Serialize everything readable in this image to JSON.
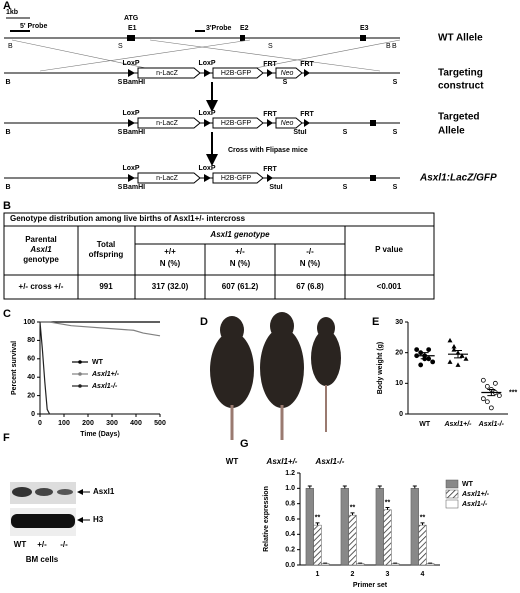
{
  "panel_labels": [
    "A",
    "B",
    "C",
    "D",
    "E",
    "F",
    "G"
  ],
  "panel_a": {
    "scale": "1kb",
    "probe5": "5' Probe",
    "atg": "ATG",
    "probe3": "3'Probe",
    "exons": [
      "E1",
      "E2",
      "E3"
    ],
    "rows": [
      [
        "WT Allele"
      ],
      [
        "Targeting",
        "construct"
      ],
      [
        "Targeted",
        "Allele"
      ],
      [
        "Asxl1:LacZ/GFP"
      ]
    ],
    "loxp": "LoxP",
    "lacz": "n-LacZ",
    "gfp": "H2B-GFP",
    "frt": "FRT",
    "neo": "Neo",
    "bamhi": "BamHI",
    "stui": "StuI",
    "b": "B",
    "s": "S",
    "cross": "Cross with Flipase mice"
  },
  "table": {
    "title": "Genotype distribution among live births of Asxl1+/- intercross",
    "parental": [
      "Parental",
      "Asxl1",
      "genotype"
    ],
    "total": [
      "Total",
      "offspring"
    ],
    "genotype": "Asxl1 genotype",
    "subcols": [
      [
        "+/+",
        "N (%)"
      ],
      [
        "+/-",
        "N (%)"
      ],
      [
        "-/-",
        "N (%)"
      ]
    ],
    "p": "P value",
    "row": [
      "+/- cross +/-",
      "991",
      "317 (32.0)",
      "607 (61.2)",
      "67 (6.8)",
      "<0.001"
    ]
  },
  "panel_d": {
    "labels": [
      "WT",
      "Asxl1+/-",
      "Asxl1-/-"
    ]
  },
  "panel_f": {
    "bands": [
      "Asxl1",
      "H3"
    ],
    "lanes": [
      "WT",
      "+/-",
      "-/-"
    ],
    "caption": "BM cells"
  },
  "chart_data": [
    {
      "type": "line",
      "xlabel": "Time (Days)",
      "ylabel": "Percent survival",
      "x": [
        0,
        10,
        20,
        30,
        40,
        130,
        390,
        430,
        500
      ],
      "xlim": [
        0,
        500
      ],
      "xticks": [
        0,
        100,
        200,
        300,
        400,
        500
      ],
      "ylim": [
        0,
        100
      ],
      "yticks": [
        0,
        20,
        40,
        60,
        80,
        100
      ],
      "series": [
        {
          "name": "WT",
          "color": "#000000",
          "values": [
            100,
            100,
            100,
            100,
            100,
            100,
            100,
            100,
            100
          ]
        },
        {
          "name": "Asxl1+/-",
          "color": "#808080",
          "values": [
            100,
            100,
            100,
            100,
            100,
            96,
            91,
            88,
            85
          ]
        },
        {
          "name": "Asxl1-/-",
          "color": "#222222",
          "values": [
            100,
            70,
            35,
            5,
            0,
            null,
            null,
            null,
            null
          ]
        }
      ]
    },
    {
      "type": "dot",
      "ylabel": "Body weight (g)",
      "categories": [
        "WT",
        "Asxl1+/-",
        "Asxl1-/-"
      ],
      "markers": [
        "circle",
        "triangle",
        "open-circle"
      ],
      "ylim": [
        0,
        30
      ],
      "yticks": [
        0,
        10,
        20,
        30
      ],
      "points": [
        [
          21,
          20,
          19,
          18,
          17,
          19,
          16,
          18,
          21
        ],
        [
          24,
          21,
          20,
          19,
          18,
          17,
          22,
          16,
          19
        ],
        [
          11,
          9,
          8,
          7,
          6,
          5,
          4,
          2,
          10
        ]
      ],
      "means": [
        19,
        19.5,
        7
      ],
      "errors": [
        1,
        1.2,
        1
      ],
      "annotation": "***"
    },
    {
      "type": "bar",
      "xlabel": "Primer set",
      "ylabel": "Relative expression",
      "categories": [
        "1",
        "2",
        "3",
        "4"
      ],
      "ylim": [
        0,
        1.2
      ],
      "yticks": [
        {
          "value": 0,
          "label": "0.0"
        },
        {
          "value": 0.2,
          "label": "0.2"
        },
        {
          "value": 0.4,
          "label": "0.4"
        },
        {
          "value": 0.6,
          "label": "0.6"
        },
        {
          "value": 0.8,
          "label": "0.8"
        },
        {
          "value": 1,
          "label": "1.0"
        },
        {
          "value": 1.2,
          "label": "1.2"
        }
      ],
      "series": [
        {
          "name": "WT",
          "color": "#888888",
          "values": [
            1,
            1,
            1,
            1
          ],
          "errors": [
            0.03,
            0.03,
            0.03,
            0.03
          ]
        },
        {
          "name": "Asxl1+/-",
          "color": "hatch",
          "values": [
            0.52,
            0.65,
            0.72,
            0.52
          ],
          "errors": [
            0.03,
            0.03,
            0.03,
            0.03
          ],
          "annotations": [
            "**",
            "**",
            "**",
            "**"
          ]
        },
        {
          "name": "Asxl1-/-",
          "color": "#ffffff",
          "values": [
            0.02,
            0.02,
            0.02,
            0.02
          ],
          "errors": [
            0.005,
            0.005,
            0.005,
            0.005
          ]
        }
      ]
    }
  ]
}
